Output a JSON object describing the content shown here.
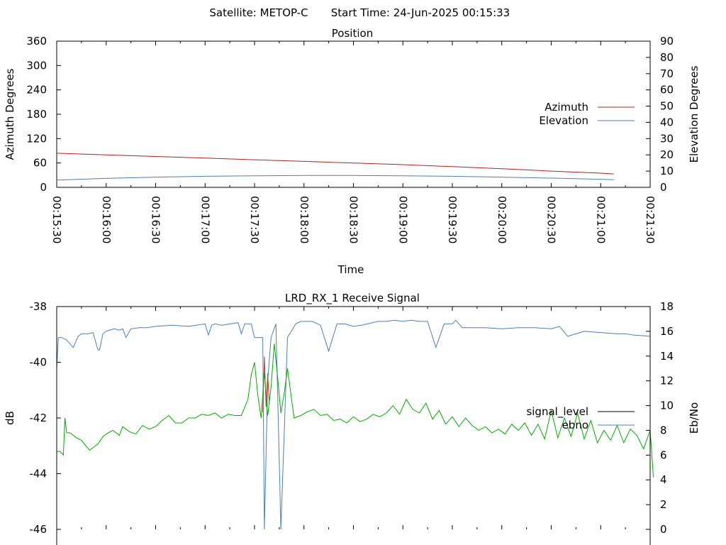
{
  "header": {
    "satellite_label": "Satellite: METOP-C",
    "start_time_label": "Start Time: 24-Jun-2025 00:15:33"
  },
  "chart_data": [
    {
      "type": "line",
      "title": "Position",
      "xlabel": "Time",
      "ylabel": "Azimuth Degrees",
      "y2label": "Elevation Degrees",
      "x_ticks": [
        "00:15:30",
        "00:16:00",
        "00:16:30",
        "00:17:00",
        "00:17:30",
        "00:18:00",
        "00:18:30",
        "00:19:00",
        "00:19:30",
        "00:20:00",
        "00:20:30",
        "00:21:00",
        "00:21:30"
      ],
      "ylim": [
        0,
        360
      ],
      "y_ticks": [
        0,
        60,
        120,
        180,
        240,
        300,
        360
      ],
      "y2lim": [
        0,
        90
      ],
      "y2_ticks": [
        0,
        10,
        20,
        30,
        40,
        50,
        60,
        70,
        80,
        90
      ],
      "grid": false,
      "legend_position": "right",
      "series": [
        {
          "name": "Azimuth",
          "axis": "left",
          "color": "#b22222",
          "x": [
            "00:15:30",
            "00:16:00",
            "00:16:30",
            "00:17:00",
            "00:17:30",
            "00:18:00",
            "00:18:30",
            "00:19:00",
            "00:19:30",
            "00:20:00",
            "00:20:30",
            "00:21:00",
            "00:21:08"
          ],
          "values": [
            84,
            80,
            76,
            72,
            68,
            64,
            60,
            56,
            51,
            46,
            40,
            35,
            33
          ]
        },
        {
          "name": "Elevation",
          "axis": "right",
          "color": "#4a7fb5",
          "x": [
            "00:15:30",
            "00:16:00",
            "00:16:30",
            "00:17:00",
            "00:17:30",
            "00:18:00",
            "00:18:30",
            "00:19:00",
            "00:19:30",
            "00:20:00",
            "00:20:30",
            "00:21:00",
            "00:21:08"
          ],
          "values": [
            4.5,
            5.5,
            6.3,
            6.8,
            7.1,
            7.3,
            7.3,
            7.1,
            6.8,
            6.3,
            5.7,
            5.0,
            4.7
          ]
        }
      ]
    },
    {
      "type": "line",
      "title": "LRD_RX_1 Receive Signal",
      "xlabel": "",
      "ylabel": "dB",
      "y2label": "Eb/No",
      "ylim": [
        -46,
        -38
      ],
      "y_ticks": [
        -46,
        -44,
        -42,
        -40,
        -38
      ],
      "y2lim": [
        0,
        18
      ],
      "y2_ticks": [
        0,
        2,
        4,
        6,
        8,
        10,
        12,
        14,
        16,
        18
      ],
      "grid": false,
      "legend_position": "right",
      "series": [
        {
          "name": "signal_level",
          "axis": "left",
          "color": "#000000",
          "x": [],
          "values": []
        },
        {
          "name": "ebno",
          "axis": "right",
          "color": "#4a7fb5",
          "x_seconds": [
            0,
            1,
            3,
            6,
            10,
            13,
            15,
            19,
            22,
            25,
            26,
            28,
            30,
            32,
            35,
            38,
            40,
            42,
            45,
            50,
            55,
            60,
            70,
            80,
            90,
            92,
            94,
            96,
            100,
            110,
            112,
            114,
            118,
            120,
            125,
            126,
            128,
            130,
            133,
            136,
            140,
            145,
            148,
            150,
            155,
            160,
            165,
            170,
            175,
            180,
            185,
            195,
            200,
            205,
            210,
            215,
            220,
            225,
            230,
            235,
            240,
            242,
            244,
            246,
            250,
            255,
            260,
            270,
            280,
            290,
            300,
            305,
            310,
            320,
            330,
            340,
            345,
            350,
            360
          ],
          "values": [
            13.0,
            15.5,
            15.5,
            15.3,
            14.7,
            15.6,
            15.8,
            15.8,
            15.9,
            14.5,
            14.5,
            15.8,
            16.0,
            16.1,
            16.2,
            16.1,
            16.2,
            15.5,
            16.2,
            16.3,
            16.3,
            16.4,
            16.5,
            16.4,
            16.6,
            15.7,
            16.5,
            16.6,
            16.5,
            16.7,
            15.8,
            16.6,
            16.6,
            15.5,
            15.5,
            0.0,
            12.0,
            15.5,
            16.6,
            0.0,
            15.5,
            16.6,
            16.8,
            16.8,
            16.8,
            16.5,
            14.4,
            16.6,
            16.6,
            16.4,
            16.5,
            16.8,
            16.8,
            16.9,
            16.8,
            16.9,
            16.8,
            16.8,
            14.7,
            16.6,
            16.6,
            16.9,
            16.6,
            16.3,
            16.3,
            16.3,
            16.3,
            16.2,
            16.3,
            16.3,
            16.2,
            16.4,
            15.6,
            16.0,
            15.9,
            15.8,
            15.8,
            15.7,
            15.6
          ]
        },
        {
          "name": "",
          "axis": "right",
          "color": "#00aa00",
          "x_seconds": [
            0,
            2,
            4,
            5,
            6,
            8,
            12,
            15,
            18,
            20,
            22,
            25,
            28,
            30,
            34,
            38,
            40,
            44,
            48,
            52,
            56,
            60,
            64,
            68,
            72,
            76,
            80,
            84,
            88,
            92,
            96,
            100,
            104,
            108,
            112,
            116,
            118,
            120,
            122,
            124,
            126,
            128,
            130,
            132,
            134,
            136,
            138,
            140,
            144,
            148,
            152,
            156,
            160,
            164,
            168,
            172,
            176,
            180,
            184,
            188,
            192,
            196,
            200,
            204,
            208,
            212,
            216,
            220,
            224,
            228,
            232,
            236,
            240,
            244,
            248,
            252,
            256,
            260,
            264,
            268,
            272,
            276,
            280,
            284,
            288,
            292,
            296,
            300,
            304,
            308,
            312,
            316,
            320,
            324,
            328,
            332,
            336,
            340,
            344,
            348,
            352,
            356,
            360,
            362
          ],
          "values": [
            6.3,
            6.3,
            6.0,
            9.0,
            7.8,
            7.8,
            7.4,
            7.2,
            6.7,
            6.4,
            6.6,
            6.9,
            7.5,
            7.7,
            8.0,
            7.6,
            8.3,
            7.9,
            7.7,
            8.4,
            8.1,
            8.3,
            8.8,
            9.2,
            8.6,
            8.6,
            9.0,
            9.0,
            9.3,
            9.2,
            9.4,
            9.0,
            9.3,
            9.2,
            9.2,
            10.5,
            12.5,
            13.5,
            10.8,
            9.0,
            12.7,
            9.2,
            11.5,
            15.0,
            12.3,
            9.4,
            11.0,
            13.0,
            9.0,
            9.2,
            9.5,
            9.7,
            9.2,
            9.3,
            8.8,
            8.9,
            8.6,
            9.1,
            8.7,
            8.9,
            9.3,
            9.1,
            9.4,
            10.0,
            9.3,
            10.5,
            9.7,
            9.4,
            10.2,
            8.9,
            9.6,
            8.5,
            9.1,
            8.3,
            9.0,
            8.4,
            8.0,
            8.3,
            7.8,
            8.1,
            7.7,
            8.5,
            8.0,
            8.6,
            7.6,
            8.5,
            7.3,
            9.6,
            7.4,
            9.0,
            7.5,
            9.4,
            7.3,
            8.8,
            7.0,
            8.0,
            7.2,
            8.4,
            7.0,
            8.1,
            7.6,
            6.5,
            8.0,
            4.2
          ]
        }
      ]
    }
  ]
}
